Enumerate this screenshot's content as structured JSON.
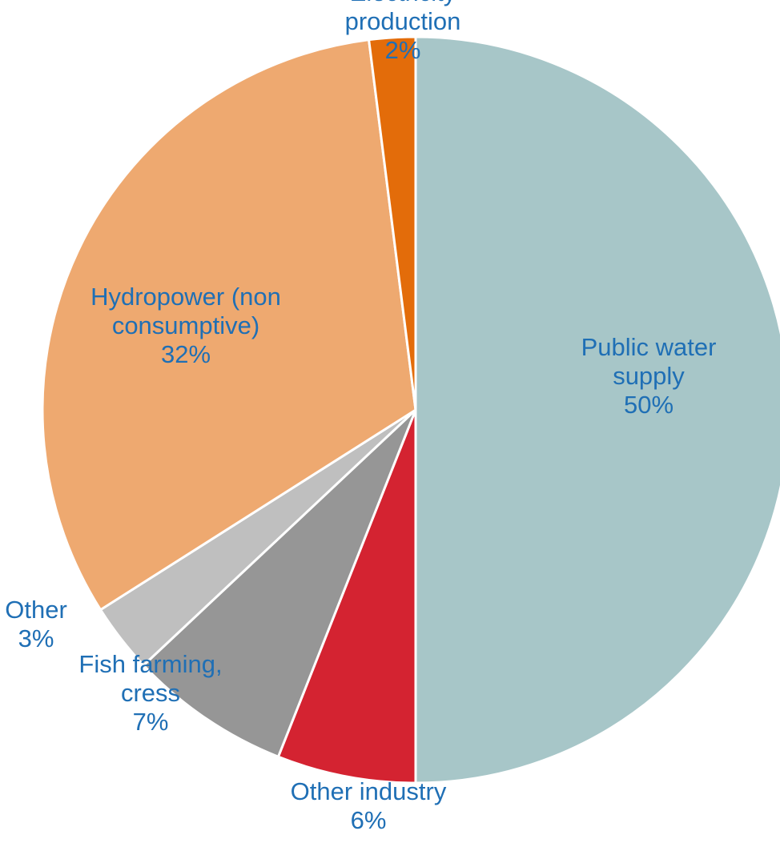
{
  "chart_data": {
    "type": "pie",
    "title": "",
    "label_color": "#1F6FB5",
    "slice_border_color": "#FFFFFF",
    "slices": [
      {
        "name_lines": [
          "Public water",
          "supply"
        ],
        "value": 50,
        "pct_label": "50%",
        "color": "#A7C6C8"
      },
      {
        "name_lines": [
          "Other industry"
        ],
        "value": 6,
        "pct_label": "6%",
        "color": "#D42331"
      },
      {
        "name_lines": [
          "Fish farming,",
          "cress"
        ],
        "value": 7,
        "pct_label": "7%",
        "color": "#969696"
      },
      {
        "name_lines": [
          "Other"
        ],
        "value": 3,
        "pct_label": "3%",
        "color": "#BFBFBF"
      },
      {
        "name_lines": [
          "Hydropower (non",
          "consumptive)"
        ],
        "value": 32,
        "pct_label": "32%",
        "color": "#EEA970"
      },
      {
        "name_lines": [
          "Electricity",
          "production"
        ],
        "value": 2,
        "pct_label": "2%",
        "color": "#E36C0A"
      }
    ]
  }
}
